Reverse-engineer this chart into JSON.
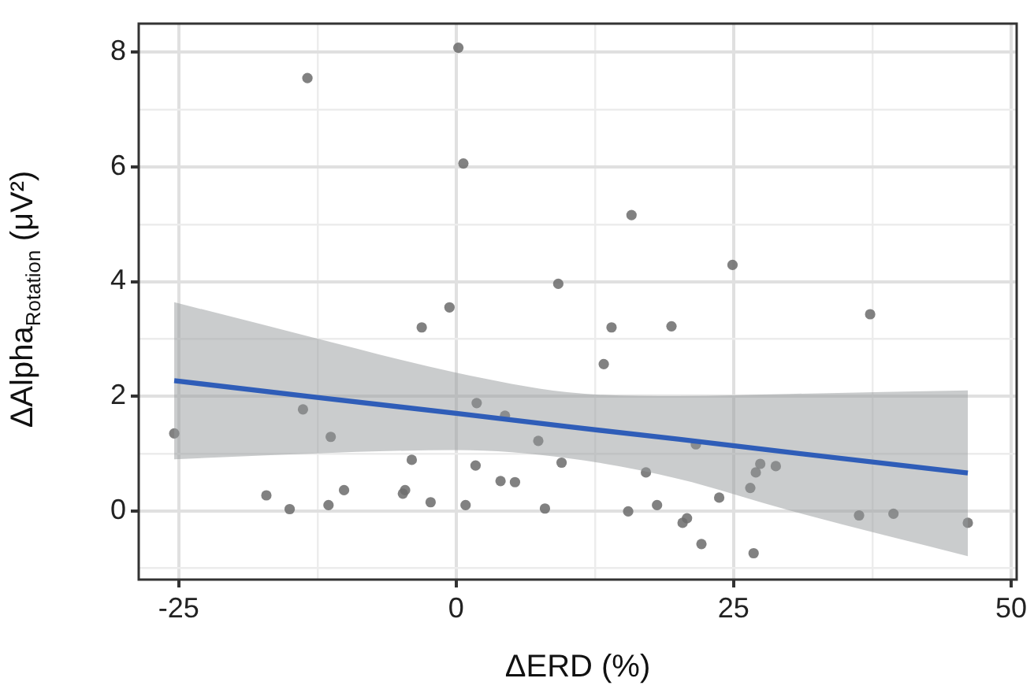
{
  "chart_data": {
    "type": "scatter",
    "xlabel": "ΔERD (%)",
    "ylabel": "ΔAlpha$_{Rotation}$ (μV²)",
    "xlim": [
      -28.6,
      50.5
    ],
    "xticks": [
      -25,
      {
        "value": -12.5,
        "label": null
      },
      0,
      {
        "value": 12.5,
        "label": null
      },
      25,
      {
        "value": 37.5,
        "label": null
      },
      50
    ],
    "ylim": [
      -1.2,
      8.5
    ],
    "yticks": [
      {
        "value": -1,
        "label": null
      },
      0,
      {
        "value": 1,
        "label": null
      },
      2,
      {
        "value": 3,
        "label": null
      },
      4,
      {
        "value": 5,
        "label": null
      },
      6,
      {
        "value": 7,
        "label": null
      },
      8
    ],
    "grid": true,
    "legend": false,
    "series": [
      {
        "marker": "circle",
        "color": "#6e6e6e",
        "x": [
          -25.4,
          -13.4,
          0.2,
          0.65,
          9.2,
          -0.6,
          -3.1,
          1.85,
          4.4,
          -13.8,
          -11.3,
          7.4,
          -4.0,
          9.5,
          1.75,
          4.0,
          5.3,
          -17.1,
          -10.1,
          -4.6,
          -4.8,
          -11.5,
          -2.3,
          0.85,
          8.0,
          -15.0,
          15.8,
          24.9,
          37.3,
          14.0,
          19.4,
          13.3,
          21.6,
          17.1,
          27.4,
          27.0,
          28.8,
          26.5,
          23.7,
          15.5,
          18.1,
          20.8,
          20.4,
          22.1,
          36.3,
          39.4,
          46.1,
          26.8
        ],
        "values": [
          1.35,
          7.55,
          8.08,
          6.06,
          3.96,
          3.55,
          3.2,
          1.88,
          1.66,
          1.77,
          1.29,
          1.22,
          0.89,
          0.84,
          0.79,
          0.52,
          0.5,
          0.27,
          0.36,
          0.36,
          0.3,
          0.1,
          0.15,
          0.1,
          0.04,
          0.03,
          5.16,
          4.29,
          3.43,
          3.2,
          3.22,
          2.56,
          1.16,
          0.67,
          0.82,
          0.67,
          0.78,
          0.4,
          0.23,
          -0.01,
          0.1,
          -0.13,
          -0.21,
          -0.58,
          -0.08,
          -0.05,
          -0.21,
          -0.74
        ]
      },
      {
        "type": "line",
        "marker": "none",
        "color": "#2f5db8",
        "x": [
          -25.4,
          -13,
          0,
          10,
          20,
          30,
          46.1
        ],
        "values": [
          2.27,
          1.99,
          1.7,
          1.47,
          1.25,
          1.02,
          0.66
        ],
        "lower": [
          0.9,
          1.0,
          1.06,
          0.92,
          0.56,
          0.01,
          -0.79
        ],
        "upper": [
          3.64,
          3.03,
          2.41,
          2.07,
          2.0,
          2.04,
          2.1
        ]
      }
    ]
  }
}
